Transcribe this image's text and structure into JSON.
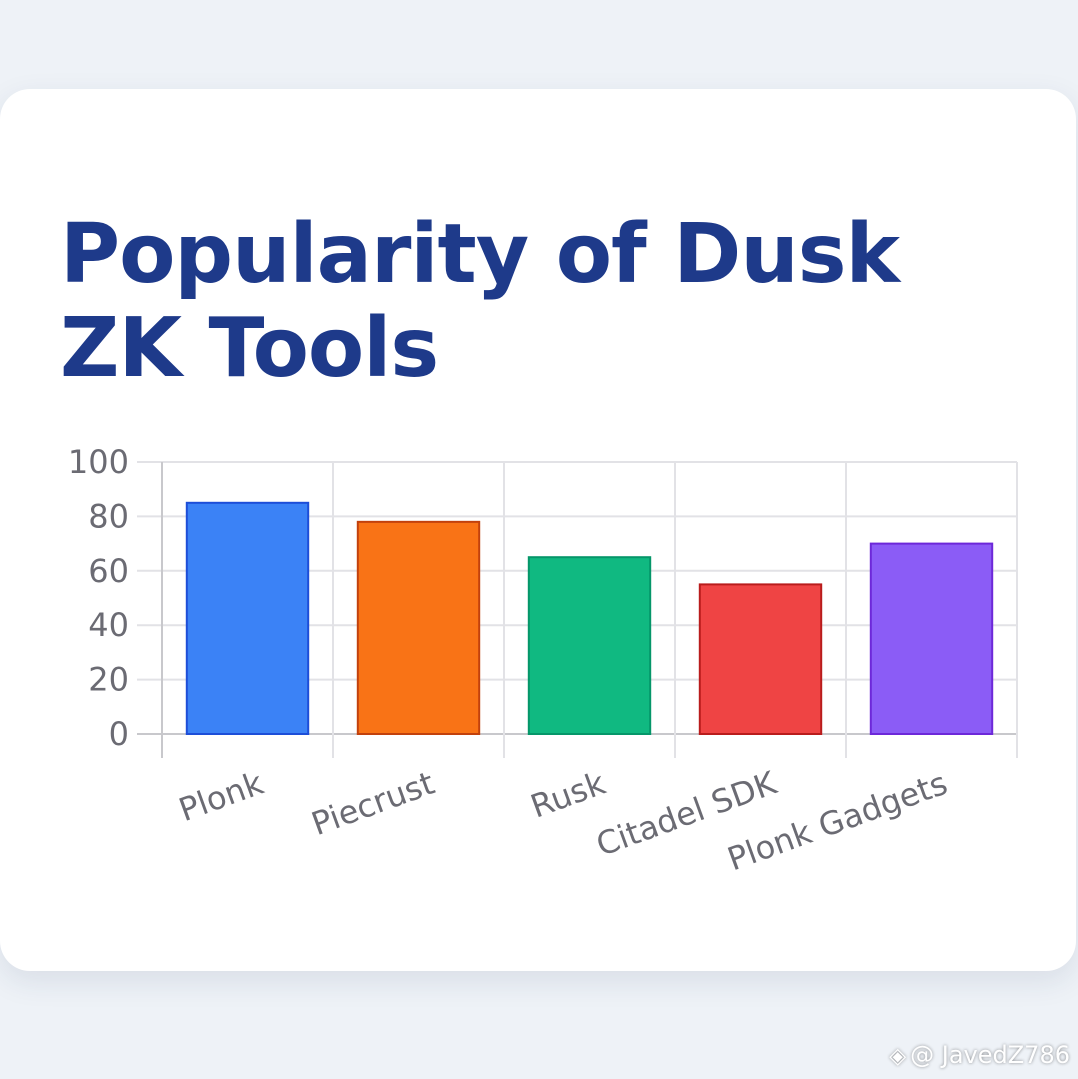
{
  "chart_data": {
    "type": "bar",
    "title": "Popularity of Dusk ZK Tools",
    "categories": [
      "Plonk",
      "Piecrust",
      "Rusk",
      "Citadel SDK",
      "Plonk Gadgets"
    ],
    "values": [
      85,
      78,
      65,
      55,
      70
    ],
    "ylim": [
      0,
      100
    ],
    "yticks": [
      "0",
      "20",
      "40",
      "60",
      "80",
      "100"
    ],
    "grid": true,
    "legend": "none",
    "colors": [
      "#3b82f6",
      "#f97316",
      "#10b981",
      "#ef4444",
      "#8b5cf6"
    ],
    "border_colors": [
      "#1d4ed8",
      "#c2410c",
      "#059669",
      "#b91c1c",
      "#6d28d9"
    ]
  },
  "watermark": {
    "text": "@ JavedZ786",
    "icon": "diamond-logo-icon"
  }
}
